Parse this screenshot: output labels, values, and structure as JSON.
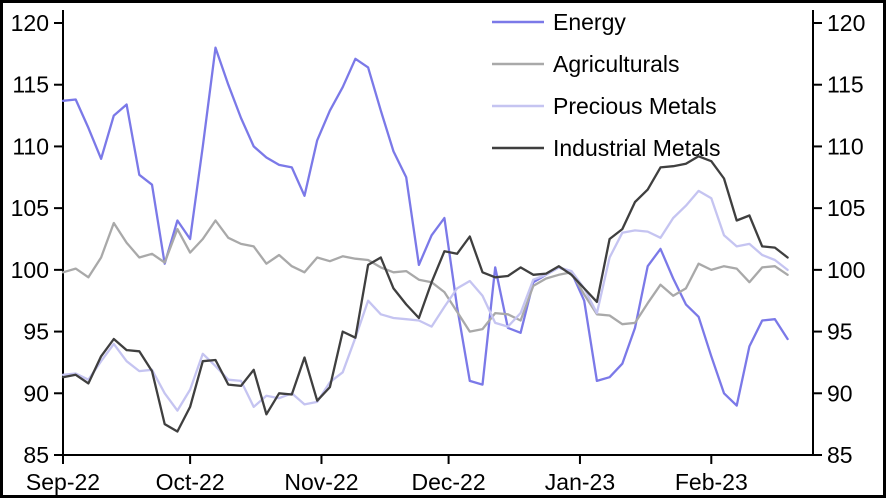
{
  "chart_data": {
    "type": "line",
    "title": "",
    "xlabel": "",
    "ylabel": "",
    "ylim": [
      85,
      120
    ],
    "grid": false,
    "legend_position": "top-right",
    "x_start_label": "Sep-22",
    "x_axis_total_days": 177,
    "sample_step_days": 3,
    "x_ticks": [
      {
        "day": 0,
        "label": "Sep-22"
      },
      {
        "day": 30,
        "label": "Oct-22"
      },
      {
        "day": 61,
        "label": "Nov-22"
      },
      {
        "day": 91,
        "label": "Dec-22"
      },
      {
        "day": 122,
        "label": "Jan-23"
      },
      {
        "day": 153,
        "label": "Feb-23"
      }
    ],
    "y_ticks": [
      85,
      90,
      95,
      100,
      105,
      110,
      115,
      120
    ],
    "colors": {
      "axis": "#000000",
      "border": "#000000",
      "background": "#ffffff"
    },
    "series": [
      {
        "name": "Energy",
        "color": "#7b79e8",
        "values": [
          113.7,
          113.8,
          111.5,
          109.0,
          112.5,
          113.4,
          107.7,
          106.9,
          100.5,
          104.0,
          102.5,
          110.0,
          118.0,
          115.0,
          112.3,
          110.0,
          109.1,
          108.5,
          108.3,
          106.0,
          110.5,
          112.9,
          114.8,
          117.1,
          116.4,
          112.9,
          109.6,
          107.5,
          100.4,
          102.8,
          104.2,
          97.0,
          91.0,
          90.7,
          100.2,
          95.3,
          94.9,
          99.0,
          99.6,
          100.2,
          99.8,
          97.5,
          91.0,
          91.3,
          92.4,
          95.3,
          100.3,
          101.7,
          99.3,
          97.2,
          96.2,
          93.0,
          90.0,
          89.0,
          93.8,
          95.9,
          96.0,
          94.4
        ]
      },
      {
        "name": "Agriculturals",
        "color": "#a9a9a9",
        "values": [
          99.8,
          100.1,
          99.4,
          101.0,
          103.8,
          102.2,
          101.0,
          101.3,
          100.6,
          103.3,
          101.4,
          102.5,
          104.0,
          102.6,
          102.1,
          101.9,
          100.5,
          101.2,
          100.3,
          99.8,
          101.0,
          100.7,
          101.1,
          100.9,
          100.8,
          100.2,
          99.8,
          99.9,
          99.2,
          99.0,
          98.2,
          96.6,
          95.0,
          95.2,
          96.5,
          96.4,
          95.9,
          98.7,
          99.3,
          99.6,
          99.8,
          98.0,
          96.4,
          96.3,
          95.6,
          95.7,
          97.3,
          98.8,
          97.9,
          98.5,
          100.5,
          100.0,
          100.3,
          100.1,
          99.0,
          100.2,
          100.3,
          99.6
        ]
      },
      {
        "name": "Precious Metals",
        "color": "#c5c4f1",
        "values": [
          91.5,
          91.6,
          91.1,
          92.6,
          94.0,
          92.6,
          91.8,
          91.9,
          90.0,
          88.6,
          90.3,
          93.2,
          92.2,
          91.1,
          91.0,
          88.9,
          89.8,
          89.6,
          90.0,
          89.1,
          89.3,
          90.9,
          91.7,
          94.5,
          97.5,
          96.4,
          96.1,
          96.0,
          95.9,
          95.4,
          97.0,
          98.5,
          99.1,
          97.9,
          95.7,
          95.4,
          96.5,
          99.2,
          99.6,
          100.2,
          99.9,
          98.5,
          96.5,
          101.0,
          103.0,
          103.2,
          103.1,
          102.6,
          104.2,
          105.2,
          106.4,
          105.8,
          102.8,
          101.9,
          102.1,
          101.2,
          100.8,
          100.0
        ]
      },
      {
        "name": "Industrial Metals",
        "color": "#3f3f3f",
        "values": [
          91.3,
          91.5,
          90.8,
          93.0,
          94.4,
          93.5,
          93.4,
          91.8,
          87.5,
          86.9,
          88.9,
          92.6,
          92.7,
          90.7,
          90.6,
          91.9,
          88.3,
          90.0,
          89.9,
          92.9,
          89.4,
          90.5,
          95.0,
          94.5,
          100.4,
          101.0,
          98.5,
          97.2,
          96.1,
          99.0,
          101.5,
          101.3,
          102.7,
          99.8,
          99.4,
          99.5,
          100.2,
          99.6,
          99.7,
          100.3,
          99.6,
          98.5,
          97.4,
          102.5,
          103.3,
          105.5,
          106.5,
          108.3,
          108.4,
          108.6,
          109.2,
          108.8,
          107.4,
          104.0,
          104.4,
          101.9,
          101.8,
          101.0
        ]
      }
    ]
  }
}
